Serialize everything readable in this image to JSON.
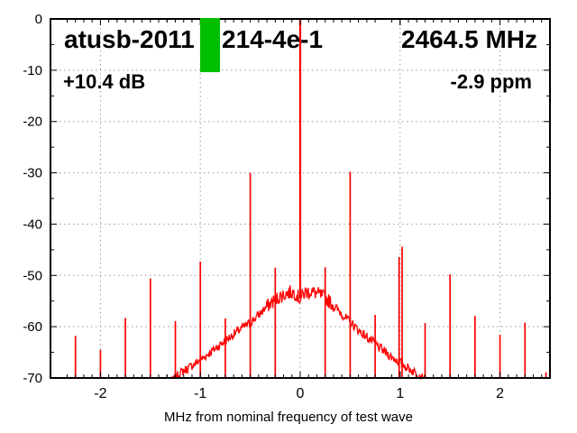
{
  "header": {
    "title_left": "atusb-2011",
    "title_right": "214-4e-1",
    "frequency": "2464.5 MHz",
    "gain": "+10.4 dB",
    "ppm_offset": "-2.9 ppm"
  },
  "chart_data": {
    "type": "line",
    "xlabel": "MHz from nominal frequency of test wave",
    "ylabel": "",
    "xlim": [
      -2.5,
      2.5
    ],
    "ylim": [
      -70,
      0
    ],
    "xticks": [
      -2,
      -1,
      0,
      1,
      2
    ],
    "yticks": [
      0,
      -10,
      -20,
      -30,
      -40,
      -50,
      -60,
      -70
    ],
    "x_minor_divisions_per_unit": 12,
    "y_minor_step_db": 5,
    "grid": true,
    "legend": "none",
    "colors": {
      "trace": "#ff0000",
      "grid": "#999999",
      "axis": "#000000",
      "marker": "#00bf00",
      "text": "#000000"
    },
    "marker_bar": {
      "x_start": -1.0,
      "x_end": -0.8,
      "db_top": 0,
      "db_bottom": -10.4
    },
    "carrier_spike": {
      "x": 0,
      "db_top": 0,
      "db_bottom": -54.5
    },
    "spikes": [
      {
        "x": -2.25,
        "db": -61.8
      },
      {
        "x": -2.0,
        "db": -64.5
      },
      {
        "x": -1.75,
        "db": -58.3
      },
      {
        "x": -1.5,
        "db": -50.6
      },
      {
        "x": -1.25,
        "db": -58.9
      },
      {
        "x": -1.0,
        "db": -47.3
      },
      {
        "x": -0.75,
        "db": -58.4
      },
      {
        "x": -0.5,
        "db": -30.0
      },
      {
        "x": -0.25,
        "db": -48.5
      },
      {
        "x": 0.25,
        "db": -48.4
      },
      {
        "x": 0.5,
        "db": -29.8
      },
      {
        "x": 0.75,
        "db": -57.7
      },
      {
        "x": 0.99,
        "db": -46.4
      },
      {
        "x": 1.02,
        "db": -44.4
      },
      {
        "x": 1.25,
        "db": -59.3
      },
      {
        "x": 1.5,
        "db": -49.8
      },
      {
        "x": 1.75,
        "db": -57.9
      },
      {
        "x": 2.0,
        "db": -61.6
      },
      {
        "x": 2.25,
        "db": -59.2
      },
      {
        "x": 2.46,
        "db": -68.9
      }
    ],
    "noise_hump": [
      [
        -1.3,
        -71.0
      ],
      [
        -1.25,
        -70.0
      ],
      [
        -1.2,
        -69.0
      ],
      [
        -1.1,
        -67.8
      ],
      [
        -1.0,
        -66.5
      ],
      [
        -0.9,
        -65.0
      ],
      [
        -0.8,
        -63.5
      ],
      [
        -0.7,
        -62.0
      ],
      [
        -0.6,
        -60.5
      ],
      [
        -0.5,
        -59.2
      ],
      [
        -0.45,
        -58.3
      ],
      [
        -0.4,
        -57.4
      ],
      [
        -0.35,
        -56.4
      ],
      [
        -0.3,
        -55.5
      ],
      [
        -0.25,
        -54.8
      ],
      [
        -0.2,
        -54.1
      ],
      [
        -0.15,
        -53.6
      ],
      [
        -0.1,
        -53.3
      ],
      [
        -0.05,
        -53.4
      ],
      [
        -0.02,
        -54.2
      ],
      [
        0.0,
        -54.6
      ],
      [
        0.02,
        -54.0
      ],
      [
        0.05,
        -53.3
      ],
      [
        0.1,
        -53.2
      ],
      [
        0.15,
        -53.4
      ],
      [
        0.2,
        -53.8
      ],
      [
        0.25,
        -54.4
      ],
      [
        0.3,
        -55.2
      ],
      [
        0.35,
        -56.2
      ],
      [
        0.4,
        -57.2
      ],
      [
        0.45,
        -58.2
      ],
      [
        0.5,
        -59.1
      ],
      [
        0.6,
        -61.0
      ],
      [
        0.7,
        -62.5
      ],
      [
        0.8,
        -64.2
      ],
      [
        0.9,
        -65.7
      ],
      [
        1.0,
        -67.0
      ],
      [
        1.1,
        -68.3
      ],
      [
        1.2,
        -69.5
      ],
      [
        1.28,
        -71.0
      ]
    ],
    "noise_amplitude_db": 0.9
  }
}
